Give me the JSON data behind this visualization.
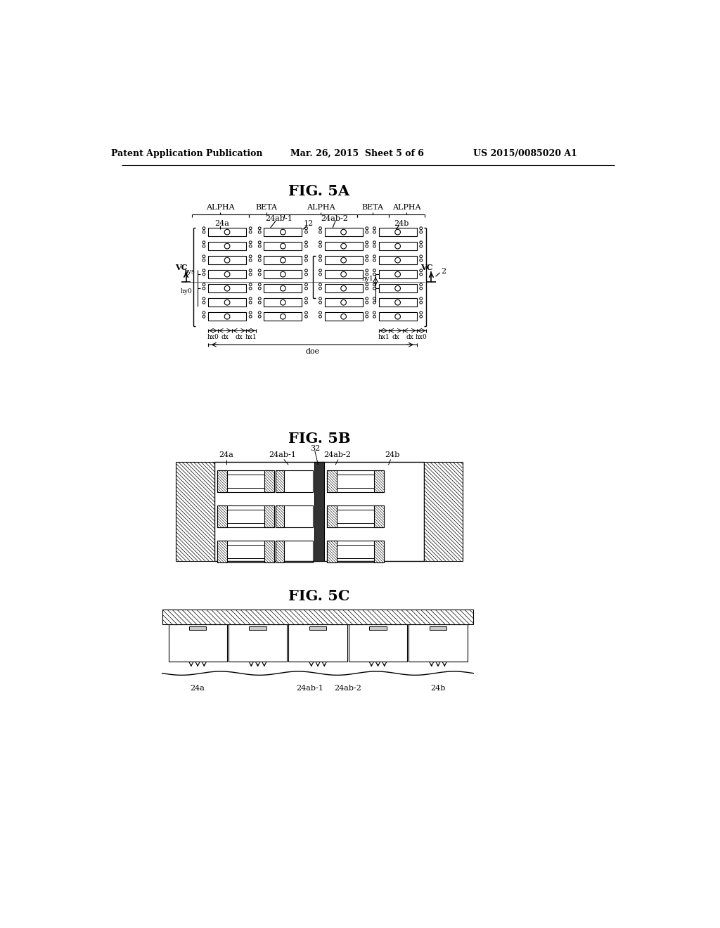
{
  "background_color": "#ffffff",
  "header_left": "Patent Application Publication",
  "header_center": "Mar. 26, 2015  Sheet 5 of 6",
  "header_right": "US 2015/0085020 A1",
  "fig5a_title": "FIG. 5A",
  "fig5b_title": "FIG. 5B",
  "fig5c_title": "FIG. 5C"
}
